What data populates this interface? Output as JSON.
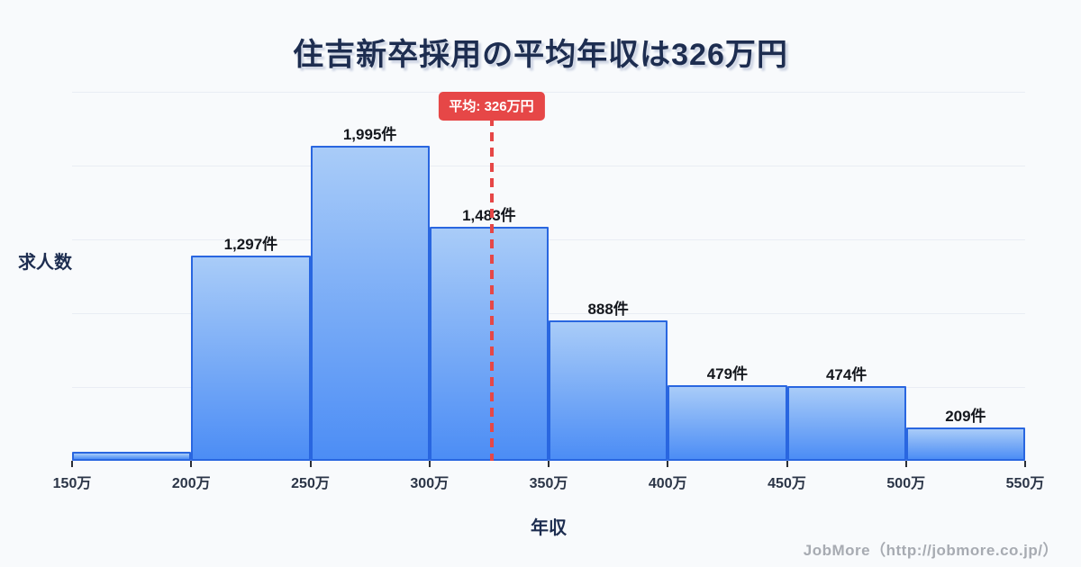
{
  "page": {
    "title": "住吉新卒採用の平均年収は326万円",
    "footer_credit": "JobMore（http://jobmore.co.jp/）"
  },
  "chart_data": {
    "type": "bar",
    "title": "住吉新卒採用の平均年収は326万円",
    "xlabel": "年収",
    "ylabel": "求人数",
    "x_tick_labels": [
      "150万",
      "200万",
      "250万",
      "300万",
      "350万",
      "400万",
      "450万",
      "500万",
      "550万"
    ],
    "x_range_man": [
      150,
      550
    ],
    "grid": true,
    "bins": [
      {
        "range_man": [
          150,
          200
        ],
        "value": 55,
        "label": "",
        "value_estimated": true
      },
      {
        "range_man": [
          200,
          250
        ],
        "value": 1297,
        "label": "1,297件",
        "value_estimated": false
      },
      {
        "range_man": [
          250,
          300
        ],
        "value": 1995,
        "label": "1,995件",
        "value_estimated": false
      },
      {
        "range_man": [
          300,
          350
        ],
        "value": 1483,
        "label": "1,483件",
        "value_estimated": false
      },
      {
        "range_man": [
          350,
          400
        ],
        "value": 888,
        "label": "888件",
        "value_estimated": false
      },
      {
        "range_man": [
          400,
          450
        ],
        "value": 479,
        "label": "479件",
        "value_estimated": false
      },
      {
        "range_man": [
          450,
          500
        ],
        "value": 474,
        "label": "474件",
        "value_estimated": false
      },
      {
        "range_man": [
          500,
          550
        ],
        "value": 209,
        "label": "209件",
        "value_estimated": false
      }
    ],
    "average_line": {
      "value_man": 326,
      "label": "平均: 326万円"
    }
  },
  "colors": {
    "background": "#f8fafc",
    "title_text": "#1d2d50",
    "bar_fill_top": "#a9ccf8",
    "bar_fill_bottom": "#4c8df5",
    "bar_border": "#2966e0",
    "average_red": "#e64747",
    "tick_label": "#2b3547",
    "value_label": "#15181e",
    "gridline": "#e9edf4",
    "footer_text": "#a7abb2"
  }
}
